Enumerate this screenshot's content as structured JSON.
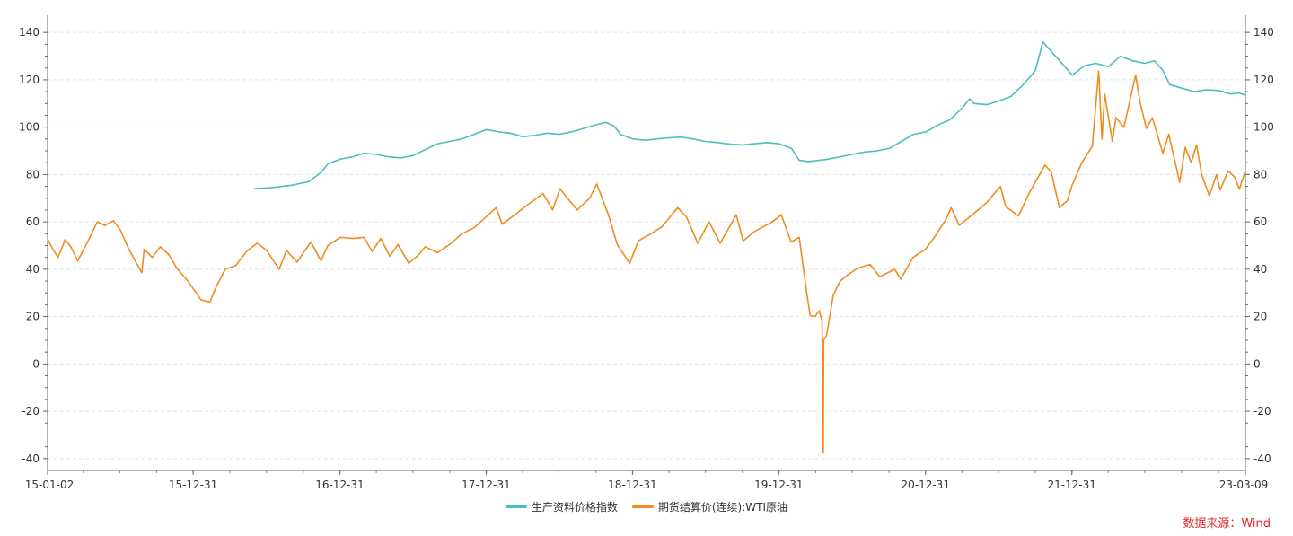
{
  "chart_data": {
    "type": "line",
    "xlim": [
      "2015-01-02",
      "2023-03-09"
    ],
    "ylim": [
      -45,
      145
    ],
    "yticks": [
      140,
      120,
      100,
      80,
      60,
      40,
      20,
      0,
      -20,
      -40
    ],
    "yticks_right": [
      140,
      120,
      100,
      80,
      60,
      40,
      20,
      0,
      -20,
      -40
    ],
    "xticks": [
      "15-01-02",
      "15-12-31",
      "16-12-31",
      "17-12-31",
      "18-12-31",
      "19-12-31",
      "20-12-31",
      "21-12-31",
      "23-03-09"
    ],
    "grid": true,
    "legend_position": "bottom",
    "series": [
      {
        "name": "生产资料价格指数",
        "color": "#4dbdbf",
        "points": [
          [
            "2016-05-31",
            74.0
          ],
          [
            "2016-07-15",
            74.5
          ],
          [
            "2016-09-01",
            75.5
          ],
          [
            "2016-10-15",
            77.0
          ],
          [
            "2016-11-15",
            81.0
          ],
          [
            "2016-12-01",
            84.5
          ],
          [
            "2017-01-01",
            86.5
          ],
          [
            "2017-02-01",
            87.5
          ],
          [
            "2017-03-01",
            89.0
          ],
          [
            "2017-04-01",
            88.5
          ],
          [
            "2017-05-01",
            87.5
          ],
          [
            "2017-06-01",
            87.0
          ],
          [
            "2017-07-01",
            88.0
          ],
          [
            "2017-08-01",
            90.5
          ],
          [
            "2017-09-01",
            93.0
          ],
          [
            "2017-10-01",
            94.0
          ],
          [
            "2017-11-01",
            95.0
          ],
          [
            "2017-12-01",
            97.0
          ],
          [
            "2018-01-01",
            99.0
          ],
          [
            "2018-02-01",
            98.0
          ],
          [
            "2018-03-01",
            97.5
          ],
          [
            "2018-04-01",
            96.0
          ],
          [
            "2018-05-01",
            96.5
          ],
          [
            "2018-06-01",
            97.5
          ],
          [
            "2018-07-01",
            97.0
          ],
          [
            "2018-08-01",
            98.0
          ],
          [
            "2018-09-01",
            99.5
          ],
          [
            "2018-10-01",
            101.0
          ],
          [
            "2018-10-25",
            102.0
          ],
          [
            "2018-11-15",
            100.5
          ],
          [
            "2018-12-01",
            97.0
          ],
          [
            "2019-01-01",
            95.0
          ],
          [
            "2019-02-01",
            94.5
          ],
          [
            "2019-03-01",
            95.0
          ],
          [
            "2019-04-01",
            95.5
          ],
          [
            "2019-05-01",
            95.8
          ],
          [
            "2019-06-01",
            95.0
          ],
          [
            "2019-07-01",
            94.0
          ],
          [
            "2019-08-01",
            93.5
          ],
          [
            "2019-09-01",
            92.8
          ],
          [
            "2019-10-01",
            92.5
          ],
          [
            "2019-11-01",
            93.0
          ],
          [
            "2019-12-01",
            93.5
          ],
          [
            "2020-01-01",
            93.0
          ],
          [
            "2020-02-01",
            91.0
          ],
          [
            "2020-02-20",
            86.0
          ],
          [
            "2020-03-15",
            85.5
          ],
          [
            "2020-05-01",
            86.5
          ],
          [
            "2020-06-01",
            87.5
          ],
          [
            "2020-07-01",
            88.5
          ],
          [
            "2020-08-01",
            89.5
          ],
          [
            "2020-09-01",
            90.0
          ],
          [
            "2020-10-01",
            91.0
          ],
          [
            "2020-11-01",
            94.0
          ],
          [
            "2020-12-01",
            97.0
          ],
          [
            "2021-01-01",
            98.0
          ],
          [
            "2021-02-01",
            101.0
          ],
          [
            "2021-03-01",
            103.0
          ],
          [
            "2021-04-01",
            108.0
          ],
          [
            "2021-04-20",
            112.0
          ],
          [
            "2021-05-01",
            110.0
          ],
          [
            "2021-06-01",
            109.5
          ],
          [
            "2021-07-01",
            111.0
          ],
          [
            "2021-08-01",
            113.0
          ],
          [
            "2021-09-01",
            118.0
          ],
          [
            "2021-10-01",
            124.0
          ],
          [
            "2021-10-20",
            136.0
          ],
          [
            "2021-11-15",
            131.0
          ],
          [
            "2021-12-01",
            128.0
          ],
          [
            "2022-01-01",
            122.0
          ],
          [
            "2022-02-01",
            126.0
          ],
          [
            "2022-03-01",
            127.0
          ],
          [
            "2022-04-01",
            125.5
          ],
          [
            "2022-05-01",
            130.0
          ],
          [
            "2022-06-01",
            128.0
          ],
          [
            "2022-07-01",
            127.0
          ],
          [
            "2022-07-25",
            128.0
          ],
          [
            "2022-08-15",
            124.0
          ],
          [
            "2022-09-01",
            118.0
          ],
          [
            "2022-10-01",
            116.5
          ],
          [
            "2022-11-01",
            115.0
          ],
          [
            "2022-12-01",
            115.8
          ],
          [
            "2023-01-01",
            115.5
          ],
          [
            "2023-02-01",
            114.0
          ],
          [
            "2023-02-20",
            114.5
          ],
          [
            "2023-03-09",
            113.5
          ]
        ]
      },
      {
        "name": "期货结算价(连续):WTI原油",
        "color": "#f08c1e",
        "points": [
          [
            "2015-01-02",
            52.7
          ],
          [
            "2015-01-15",
            48.5
          ],
          [
            "2015-01-28",
            45.0
          ],
          [
            "2015-02-15",
            52.5
          ],
          [
            "2015-03-01",
            49.5
          ],
          [
            "2015-03-18",
            43.5
          ],
          [
            "2015-04-10",
            51.0
          ],
          [
            "2015-05-06",
            60.0
          ],
          [
            "2015-05-25",
            58.5
          ],
          [
            "2015-06-15",
            60.5
          ],
          [
            "2015-07-01",
            57.0
          ],
          [
            "2015-07-25",
            48.0
          ],
          [
            "2015-08-25",
            38.5
          ],
          [
            "2015-08-31",
            48.5
          ],
          [
            "2015-09-20",
            45.0
          ],
          [
            "2015-10-10",
            49.5
          ],
          [
            "2015-11-01",
            46.0
          ],
          [
            "2015-11-20",
            40.5
          ],
          [
            "2015-12-18",
            35.0
          ],
          [
            "2016-01-20",
            27.0
          ],
          [
            "2016-02-11",
            26.2
          ],
          [
            "2016-02-25",
            32.0
          ],
          [
            "2016-03-20",
            40.0
          ],
          [
            "2016-04-15",
            41.5
          ],
          [
            "2016-05-15",
            48.0
          ],
          [
            "2016-06-08",
            51.0
          ],
          [
            "2016-07-01",
            48.0
          ],
          [
            "2016-08-02",
            40.0
          ],
          [
            "2016-08-20",
            48.0
          ],
          [
            "2016-09-15",
            43.0
          ],
          [
            "2016-10-20",
            51.5
          ],
          [
            "2016-11-14",
            43.5
          ],
          [
            "2016-12-01",
            50.0
          ],
          [
            "2017-01-01",
            53.5
          ],
          [
            "2017-02-01",
            53.0
          ],
          [
            "2017-03-01",
            53.5
          ],
          [
            "2017-03-22",
            47.5
          ],
          [
            "2017-04-12",
            53.0
          ],
          [
            "2017-05-05",
            45.5
          ],
          [
            "2017-05-25",
            50.5
          ],
          [
            "2017-06-21",
            42.5
          ],
          [
            "2017-07-15",
            46.0
          ],
          [
            "2017-08-01",
            49.5
          ],
          [
            "2017-09-01",
            47.0
          ],
          [
            "2017-10-01",
            50.5
          ],
          [
            "2017-11-01",
            55.0
          ],
          [
            "2017-12-01",
            57.5
          ],
          [
            "2018-01-25",
            66.0
          ],
          [
            "2018-02-09",
            59.0
          ],
          [
            "2018-03-20",
            64.0
          ],
          [
            "2018-04-20",
            68.0
          ],
          [
            "2018-05-22",
            72.0
          ],
          [
            "2018-06-15",
            65.0
          ],
          [
            "2018-07-03",
            74.0
          ],
          [
            "2018-08-15",
            65.0
          ],
          [
            "2018-09-15",
            70.0
          ],
          [
            "2018-10-03",
            76.0
          ],
          [
            "2018-11-01",
            63.0
          ],
          [
            "2018-11-23",
            50.5
          ],
          [
            "2018-12-24",
            42.5
          ],
          [
            "2019-01-15",
            52.0
          ],
          [
            "2019-02-15",
            55.0
          ],
          [
            "2019-03-15",
            58.0
          ],
          [
            "2019-04-23",
            66.0
          ],
          [
            "2019-05-15",
            62.0
          ],
          [
            "2019-06-12",
            51.0
          ],
          [
            "2019-07-10",
            60.0
          ],
          [
            "2019-08-07",
            51.0
          ],
          [
            "2019-09-16",
            63.0
          ],
          [
            "2019-10-03",
            52.0
          ],
          [
            "2019-11-01",
            56.0
          ],
          [
            "2019-12-15",
            60.0
          ],
          [
            "2020-01-06",
            63.0
          ],
          [
            "2020-01-31",
            51.5
          ],
          [
            "2020-02-20",
            53.5
          ],
          [
            "2020-03-09",
            31.0
          ],
          [
            "2020-03-18",
            20.5
          ],
          [
            "2020-03-30",
            20.0
          ],
          [
            "2020-04-10",
            22.5
          ],
          [
            "2020-04-17",
            18.0
          ],
          [
            "2020-04-20",
            -37.6
          ],
          [
            "2020-04-21",
            10.0
          ],
          [
            "2020-04-28",
            12.0
          ],
          [
            "2020-05-15",
            29.0
          ],
          [
            "2020-06-01",
            35.0
          ],
          [
            "2020-06-15",
            37.0
          ],
          [
            "2020-07-15",
            40.5
          ],
          [
            "2020-08-15",
            42.0
          ],
          [
            "2020-09-08",
            36.8
          ],
          [
            "2020-10-15",
            40.0
          ],
          [
            "2020-10-30",
            35.8
          ],
          [
            "2020-11-30",
            45.0
          ],
          [
            "2020-12-31",
            48.5
          ],
          [
            "2021-01-20",
            53.0
          ],
          [
            "2021-02-20",
            61.0
          ],
          [
            "2021-03-05",
            66.0
          ],
          [
            "2021-03-25",
            58.5
          ],
          [
            "2021-04-30",
            63.5
          ],
          [
            "2021-06-01",
            68.0
          ],
          [
            "2021-07-06",
            75.0
          ],
          [
            "2021-07-19",
            66.5
          ],
          [
            "2021-08-20",
            62.5
          ],
          [
            "2021-09-15",
            72.0
          ],
          [
            "2021-10-25",
            84.0
          ],
          [
            "2021-11-10",
            81.0
          ],
          [
            "2021-11-30",
            66.0
          ],
          [
            "2021-12-20",
            69.0
          ],
          [
            "2021-12-31",
            75.2
          ],
          [
            "2022-01-25",
            85.0
          ],
          [
            "2022-02-20",
            92.0
          ],
          [
            "2022-03-08",
            123.7
          ],
          [
            "2022-03-16",
            95.0
          ],
          [
            "2022-03-23",
            114.0
          ],
          [
            "2022-04-11",
            94.0
          ],
          [
            "2022-04-20",
            104.0
          ],
          [
            "2022-05-10",
            100.0
          ],
          [
            "2022-06-08",
            122.0
          ],
          [
            "2022-06-20",
            110.0
          ],
          [
            "2022-07-05",
            99.5
          ],
          [
            "2022-07-20",
            104.0
          ],
          [
            "2022-08-15",
            89.0
          ],
          [
            "2022-08-30",
            97.0
          ],
          [
            "2022-09-26",
            76.7
          ],
          [
            "2022-10-10",
            91.5
          ],
          [
            "2022-10-25",
            85.0
          ],
          [
            "2022-11-07",
            92.5
          ],
          [
            "2022-11-20",
            80.0
          ],
          [
            "2022-12-09",
            71.0
          ],
          [
            "2022-12-27",
            80.0
          ],
          [
            "2023-01-05",
            73.5
          ],
          [
            "2023-01-25",
            81.5
          ],
          [
            "2023-02-10",
            79.0
          ],
          [
            "2023-02-22",
            73.8
          ],
          [
            "2023-03-01",
            77.5
          ],
          [
            "2023-03-09",
            81.5
          ]
        ]
      }
    ]
  },
  "source": {
    "text": "数据来源：Wind",
    "color": "#e0282e"
  }
}
